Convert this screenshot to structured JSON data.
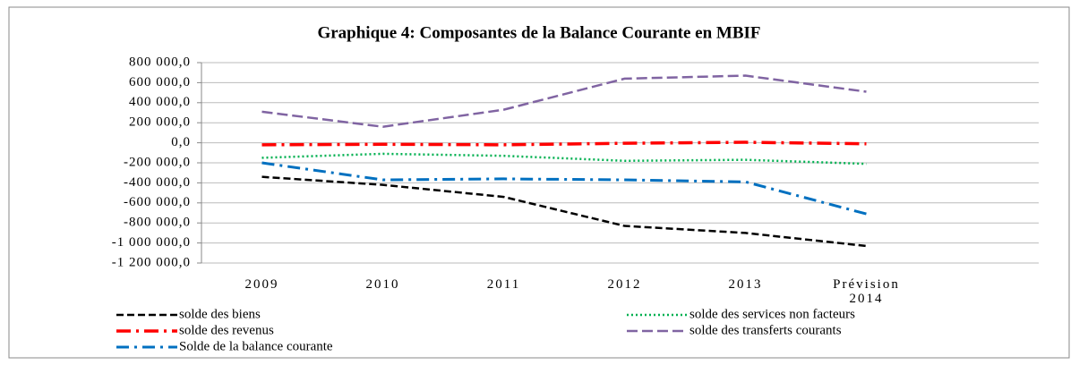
{
  "chart_data": {
    "type": "line",
    "title": "Graphique 4: Composantes de la Balance Courante en MBIF",
    "categories": [
      "2009",
      "2010",
      "2011",
      "2012",
      "2013",
      "Prévision 2014"
    ],
    "series": [
      {
        "name": "solde des biens",
        "color": "#000000",
        "values": [
          -340000,
          -420000,
          -540000,
          -830000,
          -900000,
          -1030000
        ]
      },
      {
        "name": "solde des services non facteurs",
        "color": "#00b050",
        "values": [
          -150000,
          -110000,
          -130000,
          -180000,
          -170000,
          -210000
        ]
      },
      {
        "name": "solde des revenus",
        "color": "#ff0000",
        "values": [
          -20000,
          -15000,
          -20000,
          -5000,
          5000,
          -10000
        ]
      },
      {
        "name": "solde des transferts courants",
        "color": "#8064a2",
        "values": [
          310000,
          160000,
          330000,
          640000,
          670000,
          510000
        ]
      },
      {
        "name": "Solde de la balance courante",
        "color": "#0070c0",
        "values": [
          -200000,
          -370000,
          -360000,
          -370000,
          -390000,
          -710000
        ]
      }
    ],
    "ylim": [
      -1200000,
      800000
    ],
    "yticks": [
      {
        "value": -1200000,
        "label": "-1 200 000,0"
      },
      {
        "value": -1000000,
        "label": "-1 000 000,0"
      },
      {
        "value": -800000,
        "label": "-800 000,0"
      },
      {
        "value": -600000,
        "label": "-600 000,0"
      },
      {
        "value": -400000,
        "label": "-400 000,0"
      },
      {
        "value": -200000,
        "label": "-200 000,0"
      },
      {
        "value": 0,
        "label": "0,0"
      },
      {
        "value": 200000,
        "label": "200 000,0"
      },
      {
        "value": 400000,
        "label": "400 000,0"
      },
      {
        "value": 600000,
        "label": "600 000,0"
      },
      {
        "value": 800000,
        "label": "800 000,0"
      }
    ],
    "grid": true
  }
}
